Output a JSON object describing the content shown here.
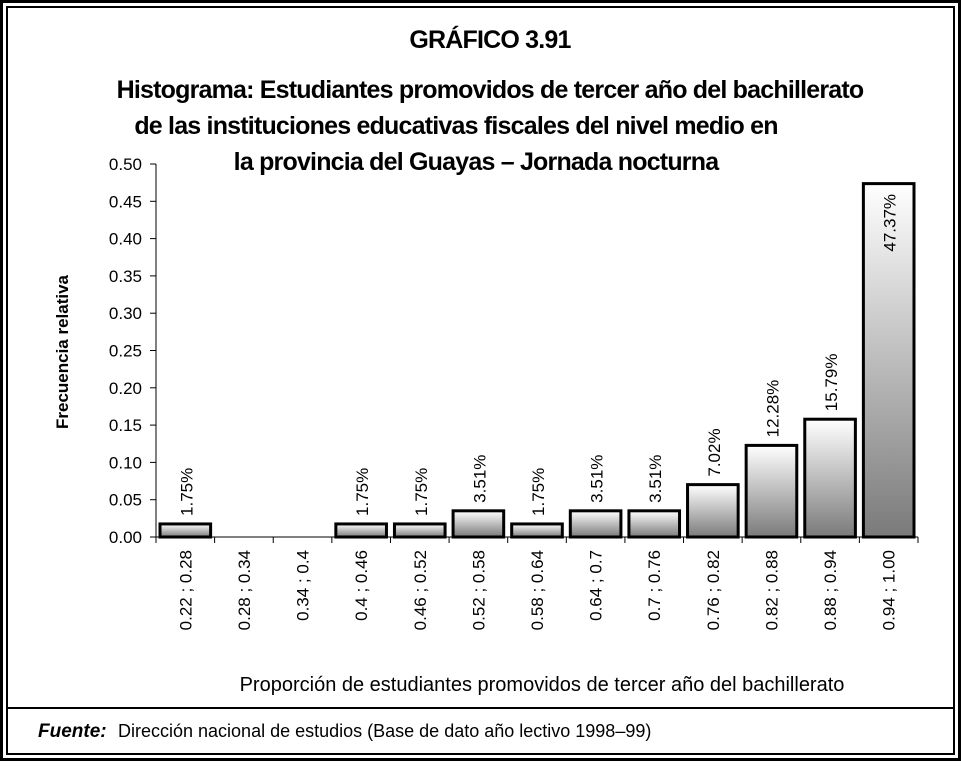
{
  "chart_data": {
    "type": "histogram",
    "title": "GRÁFICO 3.91",
    "subtitle": [
      "Histograma: Estudiantes promovidos de tercer año del bachillerato",
      "de  las instituciones educativas fiscales del nivel medio en",
      "la provincia del Guayas – Jornada nocturna"
    ],
    "y_label": "Frecuencia  relativa",
    "x_label": "Proporción de estudiantes promovidos de tercer año del bachillerato",
    "source_label": "Fuente:",
    "source_text": "Dirección nacional de estudios (Base de dato año lectivo 1998–99)",
    "categories": [
      "0.22 ; 0.28",
      "0.28 ; 0.34",
      "0.34 ; 0.4",
      "0.4 ; 0.46",
      "0.46 ; 0.52",
      "0.52 ; 0.58",
      "0.58 ; 0.64",
      "0.64 ; 0.7",
      "0.7 ; 0.76",
      "0.76 ; 0.82",
      "0.82 ; 0.88",
      "0.88 ; 0.94",
      "0.94 ; 1.00"
    ],
    "values": [
      0.0175,
      0,
      0,
      0.0175,
      0.0175,
      0.0351,
      0.0175,
      0.0351,
      0.0351,
      0.0702,
      0.1228,
      0.1579,
      0.4737
    ],
    "value_labels": [
      "1.75%",
      null,
      null,
      "1.75%",
      "1.75%",
      "3.51%",
      "1.75%",
      "3.51%",
      "3.51%",
      "7.02%",
      "12.28%",
      "15.79%",
      "47.37%"
    ],
    "color": "#7a7a7a",
    "ylim": [
      0,
      0.5
    ],
    "yticks": [
      {
        "value": 0,
        "label": "0.00"
      },
      {
        "value": 0.05,
        "label": "0.05"
      },
      {
        "value": 0.1,
        "label": "0.10"
      },
      {
        "value": 0.15,
        "label": "0.15"
      },
      {
        "value": 0.2,
        "label": "0.20"
      },
      {
        "value": 0.25,
        "label": "0.25"
      },
      {
        "value": 0.3,
        "label": "0.30"
      },
      {
        "value": 0.35,
        "label": "0.35"
      },
      {
        "value": 0.4,
        "label": "0.40"
      },
      {
        "value": 0.45,
        "label": "0.45"
      },
      {
        "value": 0.5,
        "label": "0.50"
      }
    ],
    "grid": false
  }
}
